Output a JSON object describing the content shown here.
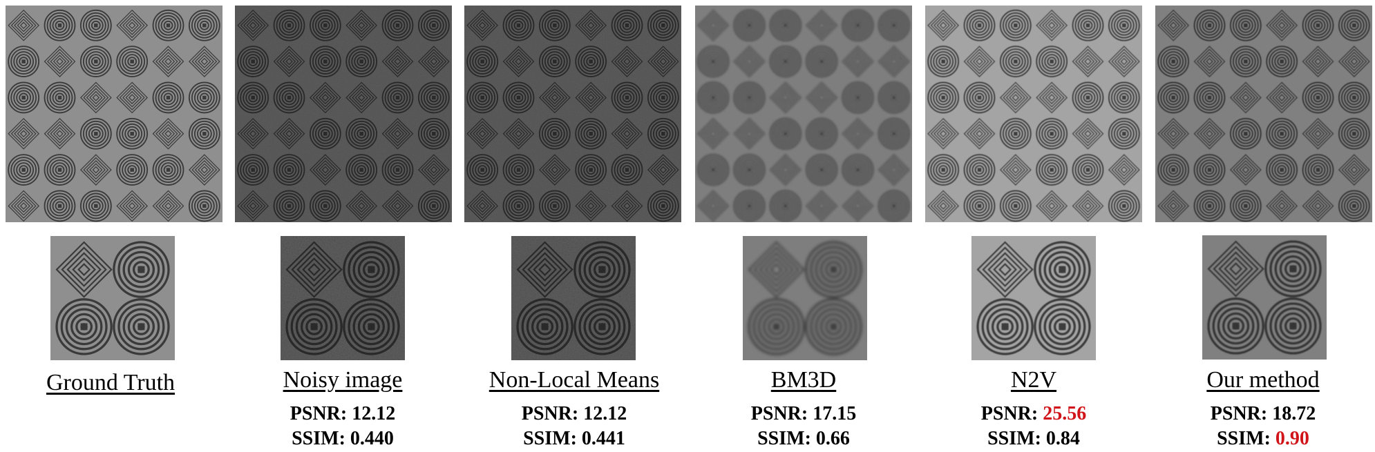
{
  "panels": [
    {
      "caption": "Ground Truth",
      "psnr_label": "",
      "psnr_value": "",
      "ssim_label": "",
      "ssim_value": "",
      "variant": "clean"
    },
    {
      "caption": "Noisy image",
      "psnr_label": "PSNR: ",
      "psnr_value": "12.12",
      "ssim_label": "SSIM: ",
      "ssim_value": "0.440",
      "variant": "noisy"
    },
    {
      "caption": "Non-Local Means",
      "psnr_label": "PSNR: ",
      "psnr_value": "12.12",
      "ssim_label": "SSIM: ",
      "ssim_value": "0.441",
      "variant": "noisy"
    },
    {
      "caption": "BM3D",
      "psnr_label": "PSNR: ",
      "psnr_value": "17.15",
      "ssim_label": "SSIM: ",
      "ssim_value": "0.66",
      "variant": "blurred"
    },
    {
      "caption": "N2V",
      "psnr_label": "PSNR: ",
      "psnr_value": "25.56",
      "ssim_label": "SSIM: ",
      "ssim_value": "0.84",
      "variant": "light",
      "psnr_highlight": true
    },
    {
      "caption": "Our method",
      "psnr_label": "PSNR: ",
      "psnr_value": "18.72",
      "ssim_label": "SSIM: ",
      "ssim_value": "0.90",
      "variant": "clean-dark",
      "ssim_highlight": true
    }
  ],
  "colors": {
    "highlight": "#d0141a",
    "text": "#000000"
  }
}
